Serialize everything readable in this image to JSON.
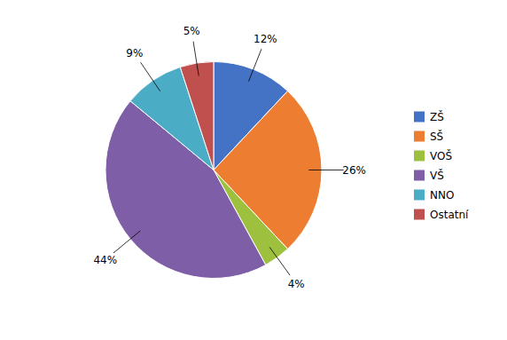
{
  "chart_data": {
    "type": "pie",
    "categories": [
      "ZŠ",
      "SŠ",
      "VOŠ",
      "VŠ",
      "NNO",
      "Ostatní"
    ],
    "values": [
      12,
      26,
      4,
      44,
      9,
      5
    ],
    "value_labels": [
      "12%",
      "26%",
      "4%",
      "44%",
      "9%",
      "5%"
    ],
    "colors": [
      "#4472c4",
      "#ed7d31",
      "#9dc13f",
      "#7e5ea7",
      "#4bacc6",
      "#c0504d"
    ],
    "data_labels": true,
    "legend": "right"
  }
}
